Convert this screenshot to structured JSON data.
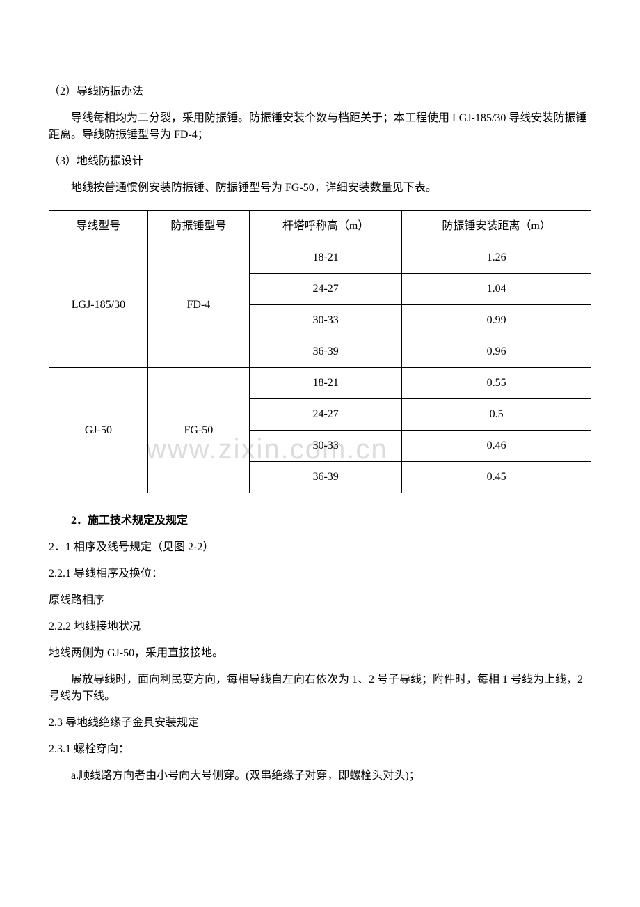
{
  "p1": "（2）导线防振办法",
  "p2": "导线每相均为二分裂，采用防振锤。防振锤安装个数与档距关于；本工程使用 LGJ-185/30 导线安装防振锤距离。导线防振锤型号为 FD-4；",
  "p3": "（3）地线防振设计",
  "p4": "地线按普通惯例安装防振锤、防振锤型号为 FG-50，详细安装数量见下表。",
  "table": {
    "headers": [
      "导线型号",
      "防振锤型号",
      "杆塔呼称高（m）",
      "防振锤安装距离（m）"
    ],
    "groups": [
      {
        "wire_model": "LGJ-185/30",
        "damper_model": "FD-4",
        "rows": [
          {
            "height": "18-21",
            "distance": "1.26"
          },
          {
            "height": "24-27",
            "distance": "1.04"
          },
          {
            "height": "30-33",
            "distance": "0.99"
          },
          {
            "height": "36-39",
            "distance": "0.96"
          }
        ]
      },
      {
        "wire_model": "GJ-50",
        "damper_model": "FG-50",
        "rows": [
          {
            "height": "18-21",
            "distance": "0.55"
          },
          {
            "height": "24-27",
            "distance": "0.5"
          },
          {
            "height": "30-33",
            "distance": "0.46"
          },
          {
            "height": "36-39",
            "distance": "0.45"
          }
        ]
      }
    ]
  },
  "s2_title": "2．施工技术规定及规定",
  "s2_1": "2．1 相序及线号规定（见图 2-2）",
  "s2_2_1": "2.2.1 导线相序及换位：",
  "s2_2_1a": "原线路相序",
  "s2_2_2": "2.2.2 地线接地状况",
  "s2_2_2a": "地线两侧为 GJ-50，采用直接接地。",
  "s2_2_2b": "展放导线时，面向利民变方向，每相导线自左向右依次为 1、2 号子导线；附件时，每相 1 号线为上线，2 号线为下线。",
  "s2_3": "2.3 导地线绝缘子金具安装规定",
  "s2_3_1": "2.3.1 螺栓穿向：",
  "s2_3_1a": "a.顺线路方向者由小号向大号侧穿。(双串绝缘子对穿，即螺栓头对头)；",
  "watermark": "www.zixin.com.cn"
}
